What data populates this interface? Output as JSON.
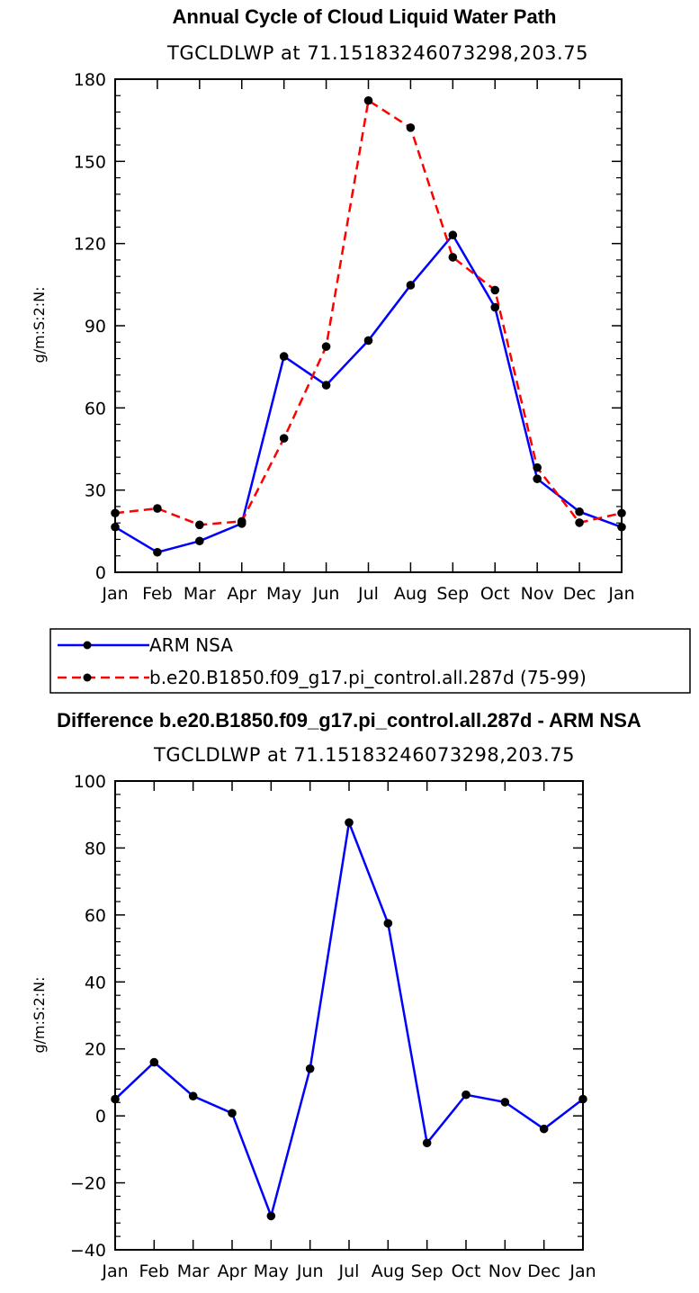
{
  "chart_data": [
    {
      "type": "line",
      "title": "Annual Cycle of Cloud Liquid Water Path",
      "subtitle": "TGCLDLWP  at  71.15183246073298,203.75",
      "xlabel": "",
      "ylabel": "g/m:S:2:N:",
      "categories": [
        "Jan",
        "Feb",
        "Mar",
        "Apr",
        "May",
        "Jun",
        "Jul",
        "Aug",
        "Sep",
        "Oct",
        "Nov",
        "Dec",
        "Jan"
      ],
      "ylim": [
        0,
        180
      ],
      "yticks": [
        0,
        30,
        60,
        90,
        120,
        150,
        180
      ],
      "series": [
        {
          "name": "ARM NSA",
          "color": "#0000ff",
          "dash": "solid",
          "values": [
            16.5,
            7.3,
            11.4,
            17.8,
            78.8,
            68.3,
            84.6,
            104.8,
            123.1,
            96.7,
            34.1,
            22.1,
            16.5
          ]
        },
        {
          "name": "b.e20.B1850.f09_g17.pi_control.all.287d (75-99)",
          "color": "#ff0000",
          "dash": "dashed",
          "values": [
            21.6,
            23.3,
            17.3,
            18.6,
            48.9,
            82.4,
            172.2,
            162.3,
            115.0,
            103.0,
            38.2,
            18.1,
            21.6
          ]
        }
      ],
      "legend_position": "bottom"
    },
    {
      "type": "line",
      "title": "Difference b.e20.B1850.f09_g17.pi_control.all.287d - ARM NSA",
      "subtitle": "TGCLDLWP  at  71.15183246073298,203.75",
      "xlabel": "",
      "ylabel": "g/m:S:2:N:",
      "categories": [
        "Jan",
        "Feb",
        "Mar",
        "Apr",
        "May",
        "Jun",
        "Jul",
        "Aug",
        "Sep",
        "Oct",
        "Nov",
        "Dec",
        "Jan"
      ],
      "ylim": [
        -40,
        100
      ],
      "yticks": [
        -40,
        -20,
        0,
        20,
        40,
        60,
        80,
        100
      ],
      "series": [
        {
          "name": "Difference",
          "color": "#0000ff",
          "dash": "solid",
          "values": [
            5.0,
            16.0,
            5.9,
            0.8,
            -29.9,
            14.1,
            87.6,
            57.5,
            -8.1,
            6.3,
            4.1,
            -3.9,
            5.0
          ]
        }
      ]
    }
  ]
}
